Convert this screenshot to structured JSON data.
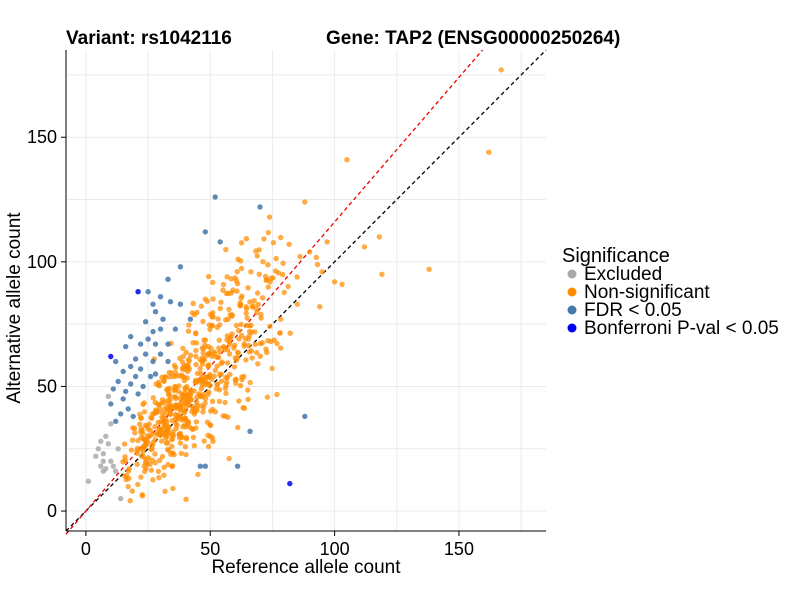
{
  "chart_data": {
    "type": "scatter",
    "title_variant": "Variant: rs1042116",
    "title_gene": "Gene: TAP2 (ENSG00000250264)",
    "xlabel": "Reference allele count",
    "ylabel": "Alternative allele count",
    "xlim": [
      -8,
      185
    ],
    "ylim": [
      -8,
      185
    ],
    "xticks": [
      0,
      50,
      100,
      150
    ],
    "yticks": [
      0,
      50,
      100,
      150
    ],
    "xtick_labels": [
      "0",
      "50",
      "100",
      "150"
    ],
    "ytick_labels": [
      "0",
      "50",
      "100",
      "150"
    ],
    "grid": true,
    "legend": {
      "position": "right",
      "title": "Significance",
      "entries": [
        {
          "key": "excluded",
          "label": "Excluded",
          "color": "#aaaaaa"
        },
        {
          "key": "nonsig",
          "label": "Non-significant",
          "color": "#ff8c00"
        },
        {
          "key": "fdr",
          "label": "FDR < 0.05",
          "color": "#4477aa"
        },
        {
          "key": "bonf",
          "label": "Bonferroni P-val < 0.05",
          "color": "#0000ee"
        }
      ]
    },
    "reference_lines": [
      {
        "name": "identity-line",
        "slope": 1.0,
        "intercept": 0,
        "color": "#000000",
        "dash": "4,3"
      },
      {
        "name": "fitted-line",
        "slope": 1.16,
        "intercept": 0,
        "color": "#ee0000",
        "dash": "4,3"
      }
    ],
    "series": [
      {
        "name": "Excluded",
        "key": "excluded",
        "points": [
          [
            1,
            12
          ],
          [
            4,
            22
          ],
          [
            5,
            25
          ],
          [
            6,
            18
          ],
          [
            6,
            28
          ],
          [
            7,
            20
          ],
          [
            7,
            16
          ],
          [
            8,
            30
          ],
          [
            8,
            17
          ],
          [
            9,
            46
          ],
          [
            9,
            27
          ],
          [
            10,
            20
          ],
          [
            10,
            35
          ],
          [
            11,
            18
          ],
          [
            12,
            16
          ],
          [
            14,
            5
          ],
          [
            13,
            25
          ],
          [
            7,
            23
          ]
        ]
      },
      {
        "name": "FDR < 0.05",
        "key": "fdr",
        "points": [
          [
            52,
            126
          ],
          [
            70,
            122
          ],
          [
            48,
            112
          ],
          [
            54,
            108
          ],
          [
            38,
            98
          ],
          [
            33,
            93
          ],
          [
            25,
            88
          ],
          [
            30,
            86
          ],
          [
            34,
            84
          ],
          [
            27,
            83
          ],
          [
            38,
            83
          ],
          [
            28,
            80
          ],
          [
            31,
            77
          ],
          [
            42,
            77
          ],
          [
            24,
            76
          ],
          [
            30,
            73
          ],
          [
            36,
            73
          ],
          [
            27,
            72
          ],
          [
            18,
            70
          ],
          [
            25,
            69
          ],
          [
            22,
            67
          ],
          [
            28,
            67
          ],
          [
            33,
            67
          ],
          [
            16,
            66
          ],
          [
            24,
            63
          ],
          [
            30,
            63
          ],
          [
            20,
            61
          ],
          [
            27,
            60
          ],
          [
            33,
            60
          ],
          [
            12,
            60
          ],
          [
            18,
            58
          ],
          [
            22,
            57
          ],
          [
            28,
            55
          ],
          [
            15,
            56
          ],
          [
            20,
            54
          ],
          [
            26,
            54
          ],
          [
            13,
            52
          ],
          [
            18,
            51
          ],
          [
            23,
            50
          ],
          [
            11,
            49
          ],
          [
            16,
            48
          ],
          [
            21,
            47
          ],
          [
            15,
            45
          ],
          [
            10,
            43
          ],
          [
            17,
            41
          ],
          [
            14,
            39
          ],
          [
            19,
            38
          ],
          [
            12,
            36
          ],
          [
            88,
            38
          ],
          [
            66,
            32
          ],
          [
            48,
            18
          ],
          [
            46,
            18
          ],
          [
            61,
            18
          ]
        ]
      },
      {
        "name": "Bonferroni P-val < 0.05",
        "key": "bonf",
        "points": [
          [
            21,
            88
          ],
          [
            10,
            62
          ],
          [
            82,
            11
          ]
        ]
      }
    ]
  }
}
